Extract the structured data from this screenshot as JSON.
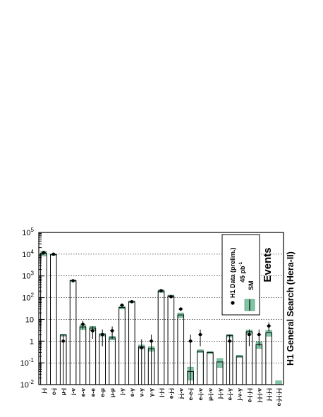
{
  "chart_data": {
    "type": "bar",
    "ylabel": "Events",
    "yscale": "log",
    "ylim": [
      0.01,
      100000
    ],
    "yticks": [
      {
        "value": 0.01,
        "base": "10",
        "exp": "-2"
      },
      {
        "value": 0.1,
        "base": "10",
        "exp": "-1"
      },
      {
        "value": 1,
        "base": "1",
        "exp": ""
      },
      {
        "value": 10,
        "base": "10",
        "exp": ""
      },
      {
        "value": 100,
        "base": "10",
        "exp": "2"
      },
      {
        "value": 1000,
        "base": "10",
        "exp": "3"
      },
      {
        "value": 10000,
        "base": "10",
        "exp": "4"
      },
      {
        "value": 100000,
        "base": "10",
        "exp": "5"
      }
    ],
    "grid_lines": [
      0.1,
      1,
      10,
      100,
      1000,
      10000
    ],
    "side_label": "H1 General Search (Hera-II)",
    "categories": [
      "j-j",
      "e-j",
      "μ-j",
      "j-ν",
      "e-ν",
      "e-e",
      "e-μ",
      "μ-μ",
      "j-γ",
      "e-γ",
      "ν-γ",
      "γ-γ",
      "j-j-j",
      "e-j-j",
      "j-j-ν",
      "e-e-j",
      "e-j-ν",
      "μ-j-ν",
      "j-j-γ",
      "e-j-γ",
      "j-ν-γ",
      "e-j-j-j",
      "j-j-j-ν",
      "j-j-j-j",
      "e-j-j-j-j"
    ],
    "series": [
      {
        "name": "SM",
        "values": [
          11000,
          9500,
          1.9,
          600,
          4.5,
          4.0,
          2.0,
          1.4,
          35,
          65,
          0.55,
          0.45,
          200,
          120,
          16,
          0.04,
          0.35,
          0.3,
          0.11,
          1.8,
          0.2,
          2.7,
          0.7,
          2.4,
          0.01
        ],
        "uncertainty": [
          0.25,
          0.08,
          0.12,
          0.1,
          0.25,
          0.2,
          0.15,
          0.2,
          0.15,
          0.1,
          0.2,
          0.25,
          0.15,
          0.1,
          0.25,
          0.6,
          0.15,
          0.12,
          0.45,
          0.15,
          0.12,
          0.2,
          0.35,
          0.3,
          0.5
        ]
      },
      {
        "name": "H1 Data (prelim.)",
        "values": [
          12000,
          10000,
          1,
          600,
          6,
          3,
          2,
          3,
          45,
          65,
          0.5,
          1,
          210,
          110,
          30,
          1,
          2,
          null,
          null,
          1,
          null,
          2,
          2,
          5,
          null
        ]
      }
    ],
    "legend": {
      "position": "top-right",
      "title": "H1 Data (prelim.)",
      "lumi_base": "45 pb",
      "lumi_exp": "-1",
      "sm_label": "SM"
    },
    "colors": {
      "band": "#7fc4a4",
      "band_edge": "#3a8a63",
      "bar": "#000000",
      "data": "#000000",
      "grid": "#000000"
    }
  }
}
